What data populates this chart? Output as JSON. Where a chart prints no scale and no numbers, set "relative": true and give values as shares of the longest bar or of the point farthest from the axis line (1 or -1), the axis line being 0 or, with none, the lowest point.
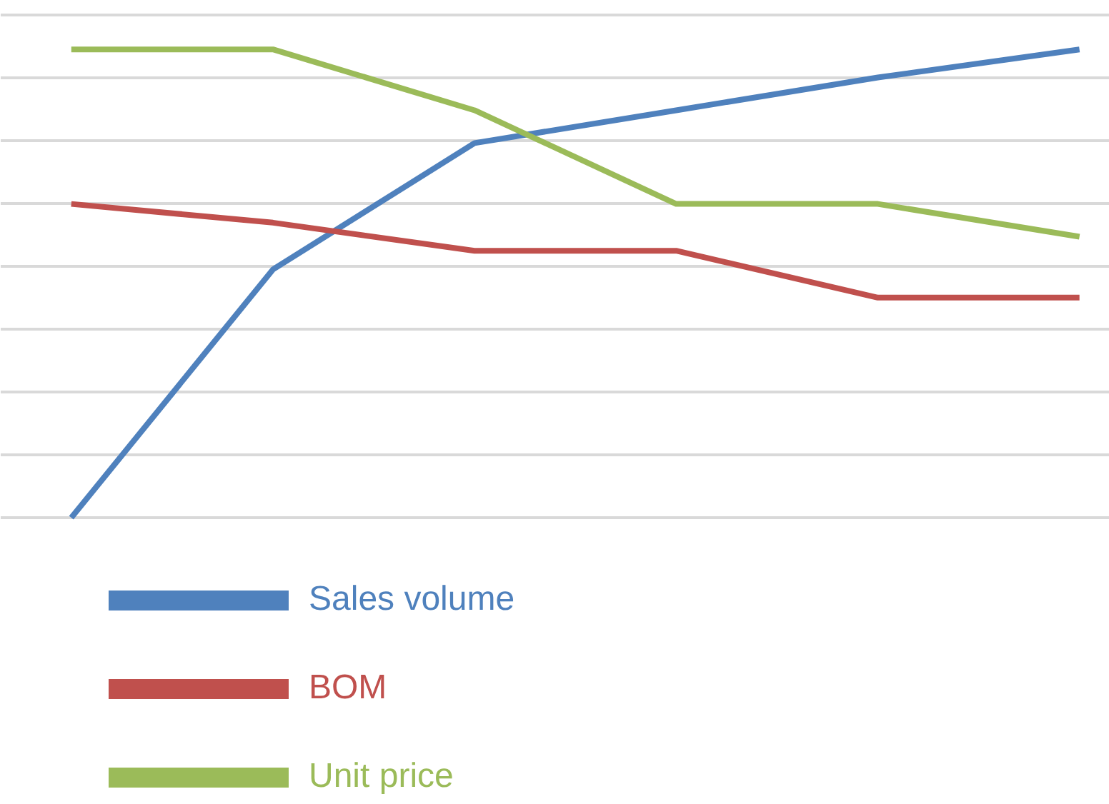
{
  "chart_data": {
    "type": "line",
    "relative": true,
    "categories": [
      null,
      null,
      null,
      null,
      null,
      null
    ],
    "series": [
      {
        "name": "Sales volume",
        "color": "#4f81bd",
        "values": [
          0,
          0.53,
          0.8,
          0.87,
          0.94,
          1.0
        ]
      },
      {
        "name": "BOM",
        "color": "#c0504d",
        "values": [
          0.67,
          0.63,
          0.57,
          0.57,
          0.47,
          0.47
        ]
      },
      {
        "name": "Unit price",
        "color": "#9bbb59",
        "values": [
          1.0,
          1.0,
          0.87,
          0.67,
          0.67,
          0.6
        ]
      }
    ],
    "grid": "y",
    "legend": "bottom",
    "marker": "none",
    "line_style": "solid"
  }
}
